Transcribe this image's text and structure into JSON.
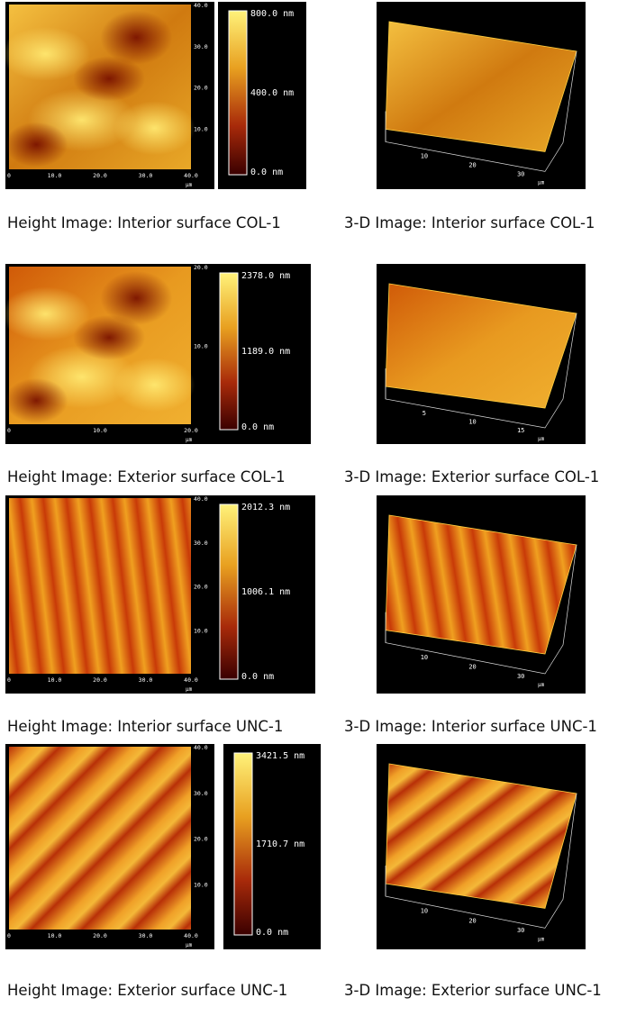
{
  "panels": [
    {
      "height_caption": "Height Image: Interior surface COL-1",
      "three_d_caption": "3-D Image: Interior surface COL-1",
      "x_ticks": [
        "0",
        "10.0",
        "20.0",
        "30.0",
        "40.0"
      ],
      "y_ticks": [
        "0",
        "10.0",
        "20.0",
        "30.0",
        "40.0"
      ],
      "unit": "µm",
      "colorbar": [
        "800.0 nm",
        "400.0 nm",
        "0.0 nm"
      ],
      "three_d_ticks": [
        "10",
        "20",
        "30"
      ]
    },
    {
      "height_caption": "Height Image: Exterior surface COL-1",
      "three_d_caption": "3-D Image: Exterior surface COL-1",
      "x_ticks": [
        "0",
        "10.0",
        "20.0"
      ],
      "y_ticks": [
        "0",
        "10.0",
        "20.0"
      ],
      "unit": "µm",
      "colorbar": [
        "2378.0 nm",
        "1189.0 nm",
        "0.0 nm"
      ],
      "three_d_ticks": [
        "5",
        "10",
        "15"
      ]
    },
    {
      "height_caption": "Height Image: Interior surface UNC-1",
      "three_d_caption": "3-D Image: Interior surface UNC-1",
      "x_ticks": [
        "0",
        "10.0",
        "20.0",
        "30.0",
        "40.0"
      ],
      "y_ticks": [
        "0",
        "10.0",
        "20.0",
        "30.0",
        "40.0"
      ],
      "unit": "µm",
      "colorbar": [
        "2012.3 nm",
        "1006.1 nm",
        "0.0 nm"
      ],
      "three_d_ticks": [
        "10",
        "20",
        "30"
      ]
    },
    {
      "height_caption": "Height Image: Exterior surface UNC-1",
      "three_d_caption": "3-D Image: Exterior surface UNC-1",
      "x_ticks": [
        "0",
        "10.0",
        "20.0",
        "30.0",
        "40.0"
      ],
      "y_ticks": [
        "0",
        "10.0",
        "20.0",
        "30.0",
        "40.0"
      ],
      "unit": "µm",
      "colorbar": [
        "3421.5 nm",
        "1710.7 nm",
        "0.0 nm"
      ],
      "three_d_ticks": [
        "10",
        "20",
        "30"
      ]
    }
  ]
}
